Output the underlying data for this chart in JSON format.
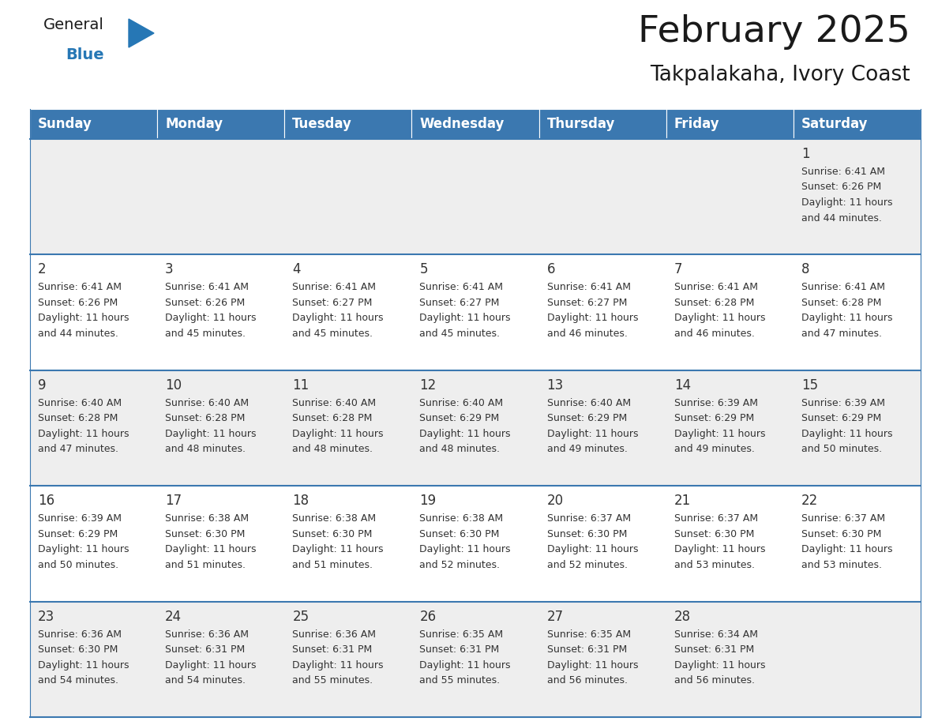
{
  "title": "February 2025",
  "subtitle": "Takpalakaha, Ivory Coast",
  "header_color": "#3b78b0",
  "header_text_color": "#ffffff",
  "days_of_week": [
    "Sunday",
    "Monday",
    "Tuesday",
    "Wednesday",
    "Thursday",
    "Friday",
    "Saturday"
  ],
  "background_color": "#ffffff",
  "cell_bg_row0": "#eeeeee",
  "cell_bg_row1": "#ffffff",
  "cell_bg_row2": "#eeeeee",
  "cell_bg_row3": "#ffffff",
  "cell_bg_row4": "#eeeeee",
  "cell_border_color": "#3b78b0",
  "day_number_color": "#333333",
  "info_text_color": "#333333",
  "calendar_data": [
    [
      null,
      null,
      null,
      null,
      null,
      null,
      {
        "day": "1",
        "sunrise": "6:41 AM",
        "sunset": "6:26 PM",
        "daylight_h": "11 hours",
        "daylight_m": "and 44 minutes."
      }
    ],
    [
      {
        "day": "2",
        "sunrise": "6:41 AM",
        "sunset": "6:26 PM",
        "daylight_h": "11 hours",
        "daylight_m": "and 44 minutes."
      },
      {
        "day": "3",
        "sunrise": "6:41 AM",
        "sunset": "6:26 PM",
        "daylight_h": "11 hours",
        "daylight_m": "and 45 minutes."
      },
      {
        "day": "4",
        "sunrise": "6:41 AM",
        "sunset": "6:27 PM",
        "daylight_h": "11 hours",
        "daylight_m": "and 45 minutes."
      },
      {
        "day": "5",
        "sunrise": "6:41 AM",
        "sunset": "6:27 PM",
        "daylight_h": "11 hours",
        "daylight_m": "and 45 minutes."
      },
      {
        "day": "6",
        "sunrise": "6:41 AM",
        "sunset": "6:27 PM",
        "daylight_h": "11 hours",
        "daylight_m": "and 46 minutes."
      },
      {
        "day": "7",
        "sunrise": "6:41 AM",
        "sunset": "6:28 PM",
        "daylight_h": "11 hours",
        "daylight_m": "and 46 minutes."
      },
      {
        "day": "8",
        "sunrise": "6:41 AM",
        "sunset": "6:28 PM",
        "daylight_h": "11 hours",
        "daylight_m": "and 47 minutes."
      }
    ],
    [
      {
        "day": "9",
        "sunrise": "6:40 AM",
        "sunset": "6:28 PM",
        "daylight_h": "11 hours",
        "daylight_m": "and 47 minutes."
      },
      {
        "day": "10",
        "sunrise": "6:40 AM",
        "sunset": "6:28 PM",
        "daylight_h": "11 hours",
        "daylight_m": "and 48 minutes."
      },
      {
        "day": "11",
        "sunrise": "6:40 AM",
        "sunset": "6:28 PM",
        "daylight_h": "11 hours",
        "daylight_m": "and 48 minutes."
      },
      {
        "day": "12",
        "sunrise": "6:40 AM",
        "sunset": "6:29 PM",
        "daylight_h": "11 hours",
        "daylight_m": "and 48 minutes."
      },
      {
        "day": "13",
        "sunrise": "6:40 AM",
        "sunset": "6:29 PM",
        "daylight_h": "11 hours",
        "daylight_m": "and 49 minutes."
      },
      {
        "day": "14",
        "sunrise": "6:39 AM",
        "sunset": "6:29 PM",
        "daylight_h": "11 hours",
        "daylight_m": "and 49 minutes."
      },
      {
        "day": "15",
        "sunrise": "6:39 AM",
        "sunset": "6:29 PM",
        "daylight_h": "11 hours",
        "daylight_m": "and 50 minutes."
      }
    ],
    [
      {
        "day": "16",
        "sunrise": "6:39 AM",
        "sunset": "6:29 PM",
        "daylight_h": "11 hours",
        "daylight_m": "and 50 minutes."
      },
      {
        "day": "17",
        "sunrise": "6:38 AM",
        "sunset": "6:30 PM",
        "daylight_h": "11 hours",
        "daylight_m": "and 51 minutes."
      },
      {
        "day": "18",
        "sunrise": "6:38 AM",
        "sunset": "6:30 PM",
        "daylight_h": "11 hours",
        "daylight_m": "and 51 minutes."
      },
      {
        "day": "19",
        "sunrise": "6:38 AM",
        "sunset": "6:30 PM",
        "daylight_h": "11 hours",
        "daylight_m": "and 52 minutes."
      },
      {
        "day": "20",
        "sunrise": "6:37 AM",
        "sunset": "6:30 PM",
        "daylight_h": "11 hours",
        "daylight_m": "and 52 minutes."
      },
      {
        "day": "21",
        "sunrise": "6:37 AM",
        "sunset": "6:30 PM",
        "daylight_h": "11 hours",
        "daylight_m": "and 53 minutes."
      },
      {
        "day": "22",
        "sunrise": "6:37 AM",
        "sunset": "6:30 PM",
        "daylight_h": "11 hours",
        "daylight_m": "and 53 minutes."
      }
    ],
    [
      {
        "day": "23",
        "sunrise": "6:36 AM",
        "sunset": "6:30 PM",
        "daylight_h": "11 hours",
        "daylight_m": "and 54 minutes."
      },
      {
        "day": "24",
        "sunrise": "6:36 AM",
        "sunset": "6:31 PM",
        "daylight_h": "11 hours",
        "daylight_m": "and 54 minutes."
      },
      {
        "day": "25",
        "sunrise": "6:36 AM",
        "sunset": "6:31 PM",
        "daylight_h": "11 hours",
        "daylight_m": "and 55 minutes."
      },
      {
        "day": "26",
        "sunrise": "6:35 AM",
        "sunset": "6:31 PM",
        "daylight_h": "11 hours",
        "daylight_m": "and 55 minutes."
      },
      {
        "day": "27",
        "sunrise": "6:35 AM",
        "sunset": "6:31 PM",
        "daylight_h": "11 hours",
        "daylight_m": "and 56 minutes."
      },
      {
        "day": "28",
        "sunrise": "6:34 AM",
        "sunset": "6:31 PM",
        "daylight_h": "11 hours",
        "daylight_m": "and 56 minutes."
      },
      null
    ]
  ],
  "row_bg_colors": [
    "#eeeeee",
    "#ffffff",
    "#eeeeee",
    "#ffffff",
    "#eeeeee"
  ],
  "fig_width": 11.88,
  "fig_height": 9.18,
  "dpi": 100
}
